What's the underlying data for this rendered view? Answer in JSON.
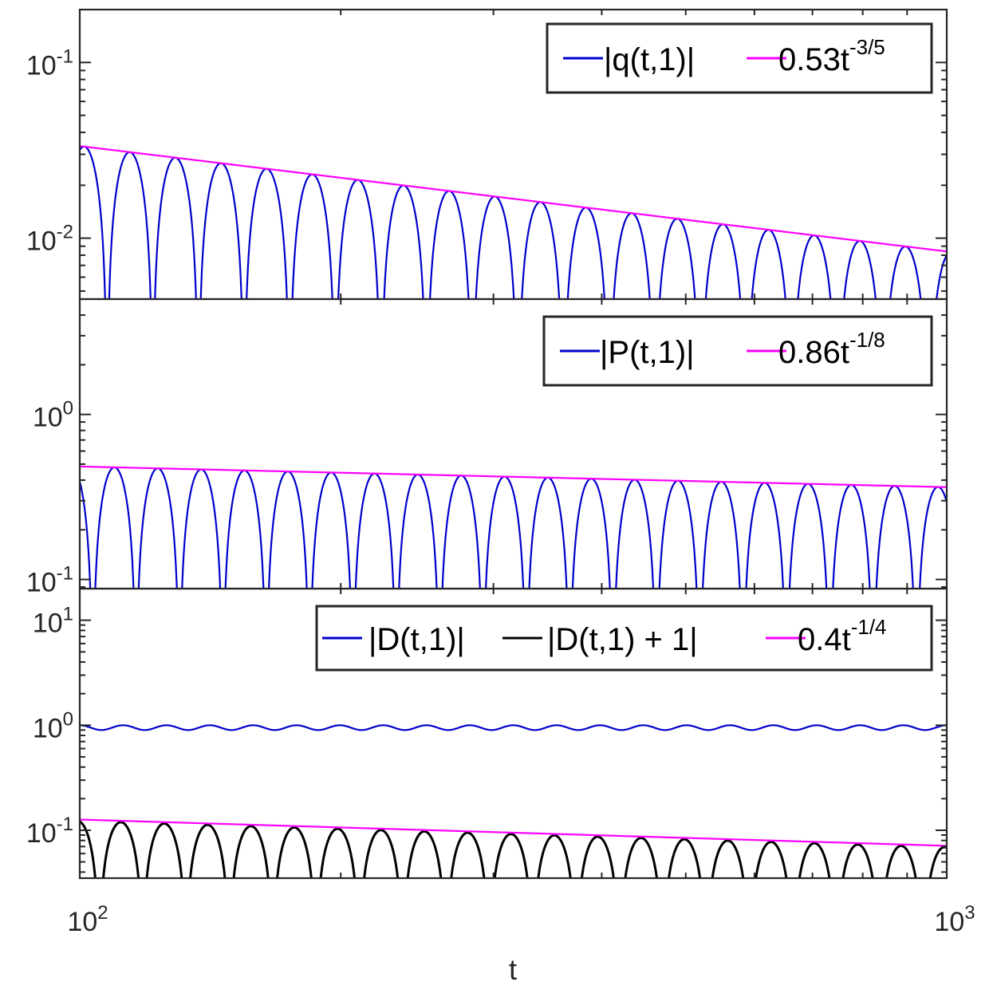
{
  "chart_data": [
    {
      "type": "line",
      "panel": "top",
      "x_scale": "log",
      "y_scale": "log",
      "xlim": [
        100,
        1000
      ],
      "ylim": [
        0.0045,
        0.2
      ],
      "yticks": [
        {
          "base": "10",
          "exp": "-1",
          "value": 0.1
        },
        {
          "base": "10",
          "exp": "-2",
          "value": 0.01
        }
      ],
      "legend": "top-right",
      "series": [
        {
          "name_main": "|q(t,1)|",
          "color": "#0000cc",
          "kind": "oscillating",
          "envelope": {
            "coef": 0.53,
            "exp": -0.6
          },
          "cycles": 19,
          "phase": 0.4
        },
        {
          "name_main": "0.53t",
          "name_sup": "-3/5",
          "color": "#ff00ff",
          "kind": "power",
          "coef": 0.53,
          "exp": -0.6
        }
      ]
    },
    {
      "type": "line",
      "panel": "middle",
      "x_scale": "log",
      "y_scale": "log",
      "xlim": [
        100,
        1000
      ],
      "ylim": [
        0.088,
        5.0
      ],
      "yticks": [
        {
          "base": "10",
          "exp": "0",
          "value": 1
        },
        {
          "base": "10",
          "exp": "-1",
          "value": 0.1
        }
      ],
      "legend": "top-right",
      "series": [
        {
          "name_main": "|P(t,1)|",
          "color": "#0000cc",
          "kind": "oscillating",
          "envelope": {
            "coef": 0.86,
            "exp": -0.125
          },
          "cycles": 20,
          "phase": 0.7
        },
        {
          "name_main": "0.86t",
          "name_sup": "-1/8",
          "color": "#ff00ff",
          "kind": "power",
          "coef": 0.86,
          "exp": -0.125
        }
      ]
    },
    {
      "type": "line",
      "panel": "bottom",
      "x_scale": "log",
      "y_scale": "log",
      "xlim": [
        100,
        1000
      ],
      "ylim": [
        0.035,
        20
      ],
      "yticks": [
        {
          "base": "10",
          "exp": "1",
          "value": 10
        },
        {
          "base": "10",
          "exp": "0",
          "value": 1
        },
        {
          "base": "10",
          "exp": "-1",
          "value": 0.1
        }
      ],
      "xticks": [
        {
          "base": "10",
          "exp": "2",
          "value": 100
        },
        {
          "base": "10",
          "exp": "3",
          "value": 1000
        }
      ],
      "xlabel": "t",
      "legend": "top-right",
      "series": [
        {
          "name_main": "|D(t,1)|",
          "color": "#0000cc",
          "kind": "wave",
          "base": 0.95,
          "amplitude": 0.05,
          "cycles": 20
        },
        {
          "name_main": "|D(t,1) + 1|",
          "color": "#000000",
          "kind": "oscillating",
          "envelope": {
            "coef": 0.4,
            "exp": -0.25
          },
          "scale": 0.97,
          "cycles": 20,
          "phase": 0.55
        },
        {
          "name_main": "0.4t",
          "name_sup": "-1/4",
          "color": "#ff00ff",
          "kind": "power",
          "coef": 0.4,
          "exp": -0.25
        }
      ]
    }
  ]
}
